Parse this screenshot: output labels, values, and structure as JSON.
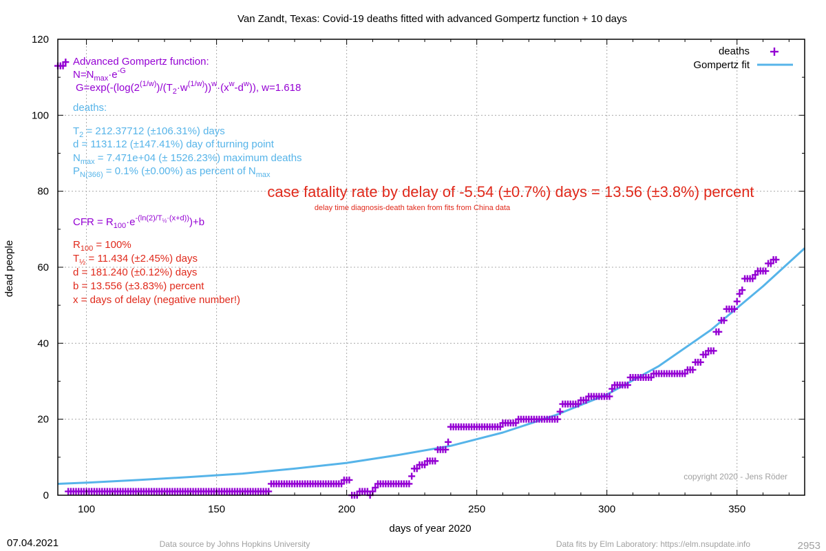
{
  "chart_data": {
    "type": "scatter",
    "title": "Van Zandt,  Texas: Covid-19 deaths fitted with advanced Gompertz function + 10 days",
    "xlabel": "days of year 2020",
    "ylabel": "dead people",
    "xlim": [
      89,
      376
    ],
    "ylim": [
      0,
      120
    ],
    "x_ticks": [
      100,
      150,
      200,
      250,
      300,
      350
    ],
    "y_ticks": [
      0,
      20,
      40,
      60,
      80,
      100,
      120
    ],
    "grid": true,
    "legend_position": "top-right",
    "legend": {
      "deaths": "deaths",
      "fit": "Gompertz fit"
    },
    "colors": {
      "deaths": "#9400d3",
      "fit": "#56b4e9",
      "red_text": "#e0291b",
      "purple_text": "#9400d3",
      "blue_text": "#56b4e9",
      "grey_text": "#a0a0a0"
    },
    "deaths_steps": [
      [
        89,
        113
      ],
      [
        92,
        114
      ],
      [
        93,
        1
      ],
      [
        171,
        3
      ],
      [
        199,
        4
      ],
      [
        202,
        0
      ],
      [
        205,
        1
      ],
      [
        207,
        1
      ],
      [
        209,
        0
      ],
      [
        210,
        1
      ],
      [
        211,
        2
      ],
      [
        212,
        3
      ],
      [
        225,
        5
      ],
      [
        226,
        7
      ],
      [
        228,
        8
      ],
      [
        231,
        9
      ],
      [
        235,
        12
      ],
      [
        239,
        14
      ],
      [
        240,
        18
      ],
      [
        260,
        19
      ],
      [
        266,
        20
      ],
      [
        282,
        22
      ],
      [
        283,
        24
      ],
      [
        290,
        25
      ],
      [
        293,
        26
      ],
      [
        302,
        28
      ],
      [
        303,
        29
      ],
      [
        309,
        31
      ],
      [
        318,
        32
      ],
      [
        331,
        33
      ],
      [
        334,
        35
      ],
      [
        337,
        37
      ],
      [
        339,
        38
      ],
      [
        342,
        43
      ],
      [
        344,
        46
      ],
      [
        346,
        49
      ],
      [
        350,
        51
      ],
      [
        351,
        53
      ],
      [
        352,
        54
      ],
      [
        353,
        57
      ],
      [
        357,
        58
      ],
      [
        358,
        59
      ],
      [
        362,
        61
      ],
      [
        364,
        62
      ],
      [
        365,
        62
      ]
    ],
    "fit_points": [
      [
        89,
        3.0
      ],
      [
        100,
        3.3
      ],
      [
        120,
        4.0
      ],
      [
        140,
        4.8
      ],
      [
        160,
        5.7
      ],
      [
        180,
        7.0
      ],
      [
        200,
        8.5
      ],
      [
        220,
        10.6
      ],
      [
        240,
        13.0
      ],
      [
        260,
        16.5
      ],
      [
        280,
        21.0
      ],
      [
        300,
        26.5
      ],
      [
        320,
        34.0
      ],
      [
        340,
        43.5
      ],
      [
        360,
        55.0
      ],
      [
        376,
        65.0
      ]
    ],
    "annotations": {
      "gompertz_title": "Advanced Gompertz function:",
      "gompertz_eq1": "N=N",
      "gompertz_eq1_sub": "max",
      "gompertz_eq1_rest": "·e",
      "gompertz_eq1_sup": "-G",
      "gompertz_eq2_a": "G=exp(-(log(2",
      "gompertz_eq2_sup1": "(1/w)",
      "gompertz_eq2_b": ")/(T",
      "gompertz_eq2_sub": "2",
      "gompertz_eq2_c": "·w",
      "gompertz_eq2_sup2": "(1/w)",
      "gompertz_eq2_d": "))",
      "gompertz_eq2_sup3": "w",
      "gompertz_eq2_e": "·(x",
      "gompertz_eq2_sup4": "w",
      "gompertz_eq2_f": "-d",
      "gompertz_eq2_sup5": "w",
      "gompertz_eq2_g": ")), w=1.618",
      "deaths_label": "deaths:",
      "t2_a": "T",
      "t2_sub": "2",
      "t2_b": " = 212.37712 (±106.31%) days",
      "d_line": "d = 1131.12 (±147.41%) day of turning point",
      "nmax_a": "N",
      "nmax_sub": "max",
      "nmax_b": " = 7.471e+04 (± 1526.23%) maximum deaths",
      "p_a": "P",
      "p_sub": "N(366)",
      "p_b": " = 0.1% (±0.00%) as percent of N",
      "p_sub2": "max",
      "cfr_headline": "case fatality rate by delay of -5.54 (±0.7%) days = 13.56 (±3.8%) percent",
      "cfr_sub": "delay time diagnosis-death taken from fits from China data",
      "cfr_a": "CFR = R",
      "cfr_sub1": "100",
      "cfr_b": "·e",
      "cfr_sup": "-(ln(2)/T",
      "cfr_sup_sub": "½",
      "cfr_sup_b": "·(x+d))",
      "cfr_c": ")+b",
      "r100_a": "R",
      "r100_sub": "100",
      "r100_b": " = 100%",
      "thalf_a": "T",
      "thalf_sub": "½",
      "thalf_b": " = 11.434 (±2.45%) days",
      "d2_line": "d = 181.240 (±0.12%) days",
      "b_line": "b = 13.556 (±3.83%) percent",
      "x_line": "x = days of delay (negative number!)",
      "copyright": "copyright 2020 - Jens Röder"
    }
  },
  "footer": {
    "date": "07.04.2021",
    "source": "Data source by Johns Hopkins University",
    "fits": "Data fits by Elm Laboratory: https://elm.nsupdate.info",
    "id": "2953"
  }
}
